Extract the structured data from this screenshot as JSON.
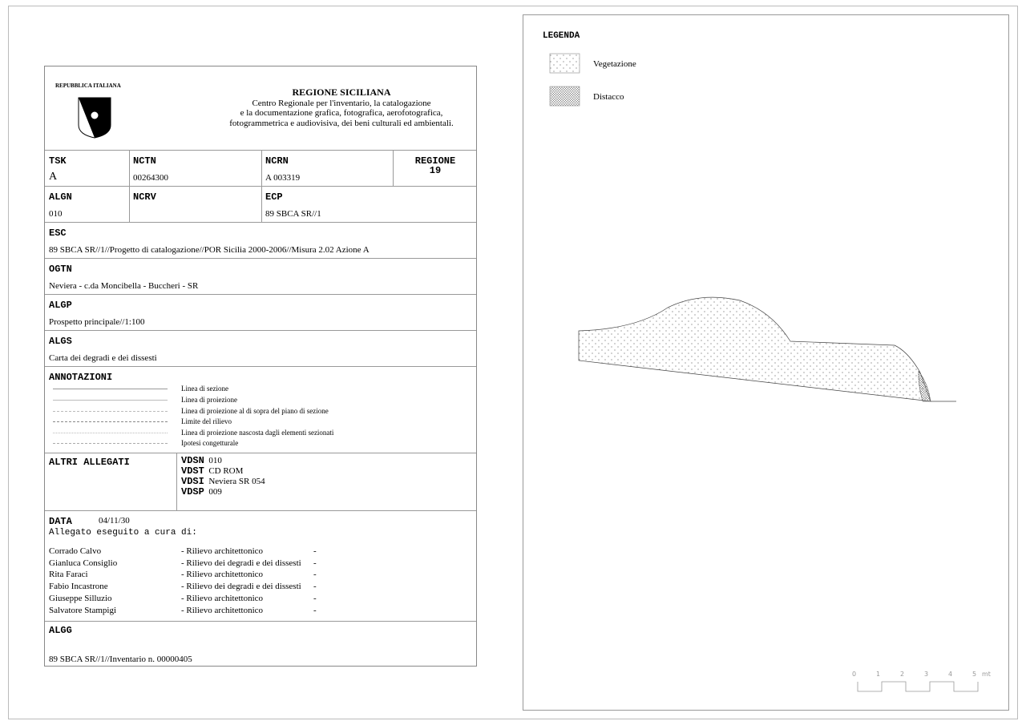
{
  "header": {
    "republic": "REPUBBLICA ITALIANA",
    "region": "REGIONE SICILIANA",
    "center_lines": [
      "Centro Regionale per l'inventario, la catalogazione",
      "e la documentazione grafica, fotografica, aerofotografica,",
      "fotogrammetrica e audiovisiva, dei beni culturali ed ambientali."
    ]
  },
  "fields": {
    "tsk": {
      "label": "TSK",
      "value": "A"
    },
    "nctn": {
      "label": "NCTN",
      "value": "00264300"
    },
    "ncrn": {
      "label": "NCRN",
      "value": "A 003319"
    },
    "regione": {
      "label": "REGIONE",
      "value": "19"
    },
    "algn": {
      "label": "ALGN",
      "value": "010"
    },
    "ncrv": {
      "label": "NCRV",
      "value": ""
    },
    "ecp": {
      "label": "ECP",
      "value": "89 SBCA SR//1"
    },
    "esc": {
      "label": "ESC",
      "value": "89 SBCA SR//1//Progetto di catalogazione//POR Sicilia 2000-2006//Misura 2.02 Azione A"
    },
    "ogtn": {
      "label": "OGTN",
      "value": "Neviera - c.da Moncibella - Buccheri - SR"
    },
    "algp": {
      "label": "ALGP",
      "value": "Prospetto principale//1:100"
    },
    "algs": {
      "label": "ALGS",
      "value": "Carta dei degradi e dei dissesti"
    },
    "algg": {
      "label": "ALGG",
      "value": "89 SBCA SR//1//Inventario n. 00000405"
    }
  },
  "annotazioni": {
    "label": "ANNOTAZIONI",
    "items": [
      "Linea di sezione",
      "Linea di proiezione",
      "Linea di proiezione al di sopra del piano di sezione",
      "Limite del rilievo",
      "Linea di proiezione nascosta dagli elementi sezionati",
      "Ipotesi congetturale"
    ]
  },
  "altri": {
    "label": "ALTRI ALLEGATI",
    "items": [
      {
        "k": "VDSN",
        "v": "010"
      },
      {
        "k": "VDST",
        "v": "CD ROM"
      },
      {
        "k": "VDSI",
        "v": "Neviera SR 054"
      },
      {
        "k": "VDSP",
        "v": "009"
      }
    ]
  },
  "data": {
    "label": "DATA",
    "value": "04/11/30",
    "subtitle": "Allegato eseguito a cura di:",
    "people": [
      {
        "name": "Corrado Calvo",
        "role": "- Rilievo architettonico",
        "dash": "-"
      },
      {
        "name": "Gianluca Consiglio",
        "role": "- Rilievo dei degradi e dei dissesti",
        "dash": "-"
      },
      {
        "name": "Rita Faraci",
        "role": "- Rilievo architettonico",
        "dash": "-"
      },
      {
        "name": "Fabio Incastrone",
        "role": "- Rilievo dei degradi e dei dissesti",
        "dash": "-"
      },
      {
        "name": "Giuseppe Silluzio",
        "role": "- Rilievo architettonico",
        "dash": "-"
      },
      {
        "name": "Salvatore Stampigi",
        "role": "- Rilievo architettonico",
        "dash": "-"
      }
    ]
  },
  "legend": {
    "title": "LEGENDA",
    "items": [
      {
        "label": "Vegetazione",
        "pattern": "sparse-dots"
      },
      {
        "label": "Distacco",
        "pattern": "dense-crosshatch"
      }
    ]
  },
  "scale": {
    "ticks": [
      "0",
      "1",
      "2",
      "3",
      "4",
      "5"
    ],
    "unit": "mt"
  }
}
